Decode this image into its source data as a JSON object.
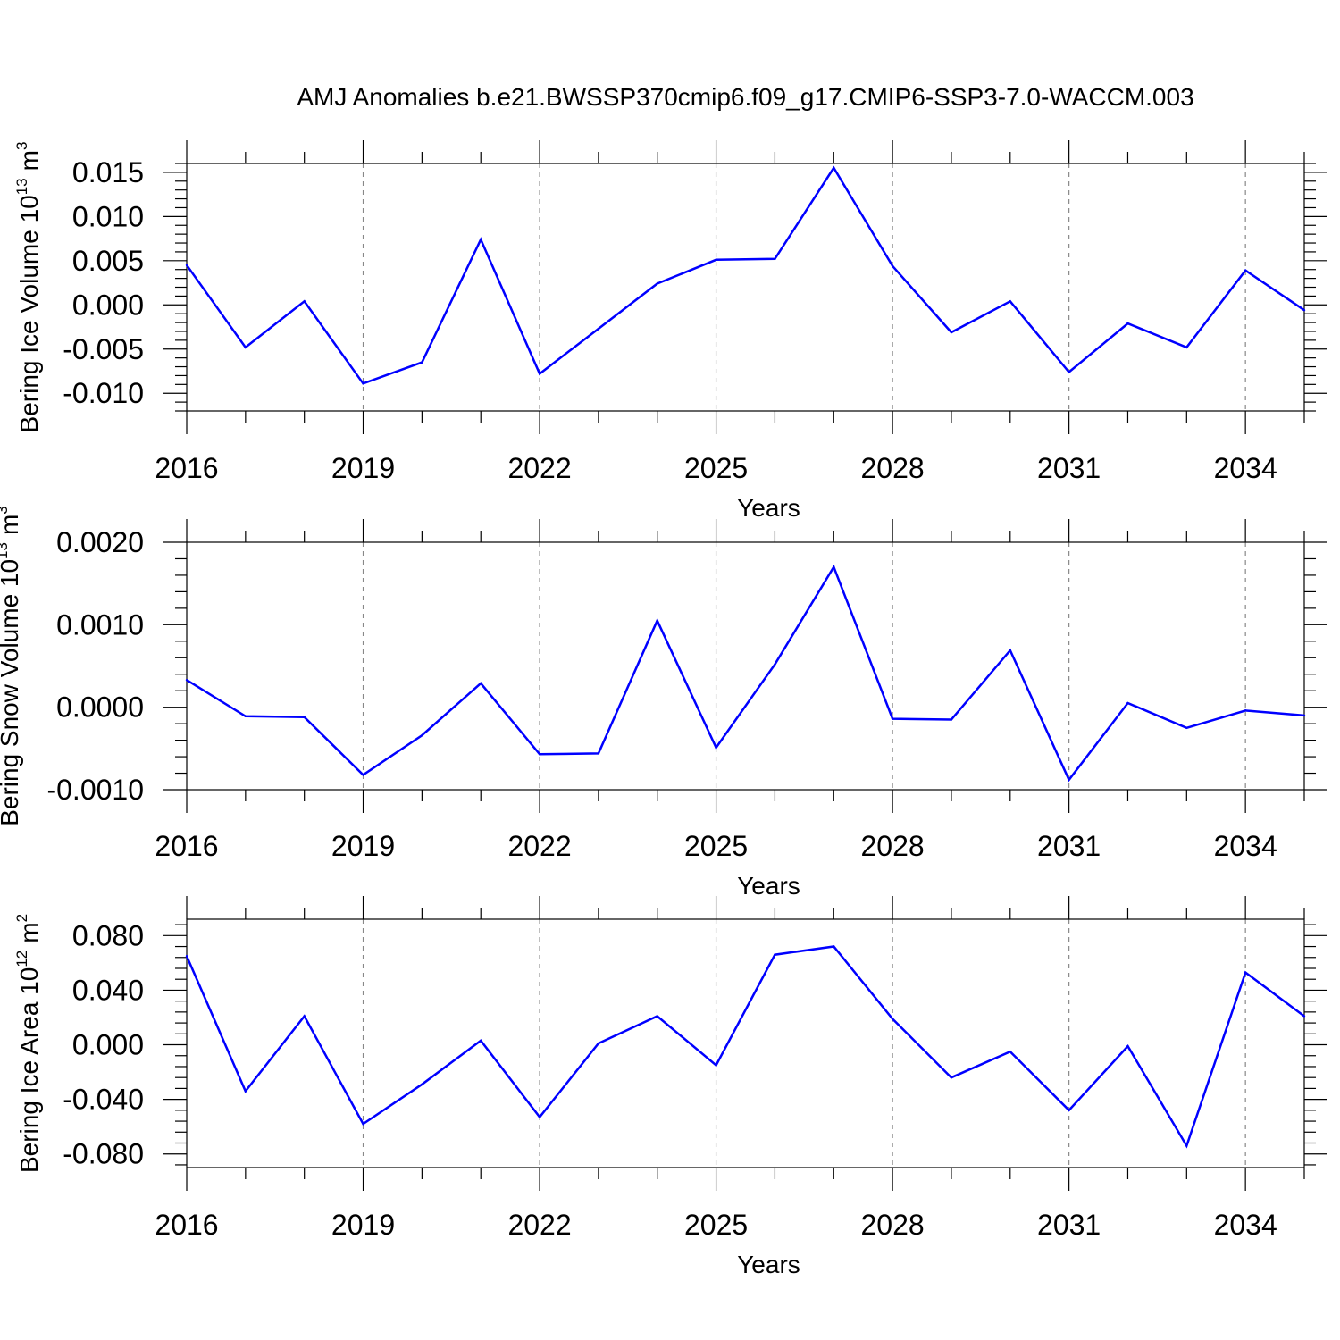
{
  "chart_data": [
    {
      "type": "line",
      "title": "AMJ Anomalies b.e21.BWSSP370cmip6.f09_g17.CMIP6-SSP3-7.0-WACCM.003",
      "xlabel": "Years",
      "ylabel_main": "Bering Ice Volume 10",
      "ylabel_exp": "13",
      "ylabel_unit": "m",
      "ylabel_unit_exp": "3",
      "xlim": [
        2016,
        2035
      ],
      "ylim": [
        -0.012,
        0.016
      ],
      "yticks": [
        -0.01,
        -0.005,
        0.0,
        0.005,
        0.01,
        0.015
      ],
      "ytick_labels": [
        "-0.010",
        "-0.005",
        "0.000",
        "0.005",
        "0.010",
        "0.015"
      ],
      "xticks": [
        2016,
        2019,
        2022,
        2025,
        2028,
        2031,
        2034
      ],
      "xtick_labels": [
        "2016",
        "2019",
        "2022",
        "2025",
        "2028",
        "2031",
        "2034"
      ],
      "x": [
        2016,
        2017,
        2018,
        2019,
        2020,
        2021,
        2022,
        2023,
        2024,
        2025,
        2026,
        2027,
        2028,
        2029,
        2030,
        2031,
        2032,
        2033,
        2034,
        2035
      ],
      "values": [
        0.0045,
        -0.0048,
        0.0004,
        -0.0089,
        -0.0065,
        0.0074,
        -0.0078,
        -0.0027,
        0.0024,
        0.0051,
        0.0052,
        0.0155,
        0.0044,
        -0.0031,
        0.0004,
        -0.0076,
        -0.0021,
        -0.0048,
        0.0039,
        -0.0006
      ],
      "grid": true,
      "color": "#0000ff"
    },
    {
      "type": "line",
      "title": "",
      "xlabel": "Years",
      "ylabel_main": "Bering Snow Volume 10",
      "ylabel_exp": "13",
      "ylabel_unit": "m",
      "ylabel_unit_exp": "3",
      "xlim": [
        2016,
        2035
      ],
      "ylim": [
        -0.001,
        0.002
      ],
      "yticks": [
        -0.001,
        0.0,
        0.001,
        0.002
      ],
      "ytick_labels": [
        "-0.0010",
        "0.0000",
        "0.0010",
        "0.0020"
      ],
      "xticks": [
        2016,
        2019,
        2022,
        2025,
        2028,
        2031,
        2034
      ],
      "xtick_labels": [
        "2016",
        "2019",
        "2022",
        "2025",
        "2028",
        "2031",
        "2034"
      ],
      "x": [
        2016,
        2017,
        2018,
        2019,
        2020,
        2021,
        2022,
        2023,
        2024,
        2025,
        2026,
        2027,
        2028,
        2029,
        2030,
        2031,
        2032,
        2033,
        2034,
        2035
      ],
      "values": [
        0.00033,
        -0.00011,
        -0.00012,
        -0.00082,
        -0.00034,
        0.00029,
        -0.00057,
        -0.00056,
        0.00105,
        -0.00049,
        0.00052,
        0.0017,
        -0.00014,
        -0.00015,
        0.00069,
        -0.00088,
        5e-05,
        -0.00025,
        -4e-05,
        -0.0001
      ],
      "grid": true,
      "color": "#0000ff"
    },
    {
      "type": "line",
      "title": "",
      "xlabel": "Years",
      "ylabel_main": "Bering Ice Area 10",
      "ylabel_exp": "12",
      "ylabel_unit": "m",
      "ylabel_unit_exp": "2",
      "xlim": [
        2016,
        2035
      ],
      "ylim": [
        -0.09,
        0.092
      ],
      "yticks": [
        -0.08,
        -0.04,
        0.0,
        0.04,
        0.08
      ],
      "ytick_labels": [
        "-0.080",
        "-0.040",
        "0.000",
        "0.040",
        "0.080"
      ],
      "xticks": [
        2016,
        2019,
        2022,
        2025,
        2028,
        2031,
        2034
      ],
      "xtick_labels": [
        "2016",
        "2019",
        "2022",
        "2025",
        "2028",
        "2031",
        "2034"
      ],
      "x": [
        2016,
        2017,
        2018,
        2019,
        2020,
        2021,
        2022,
        2023,
        2024,
        2025,
        2026,
        2027,
        2028,
        2029,
        2030,
        2031,
        2032,
        2033,
        2034,
        2035
      ],
      "values": [
        0.065,
        -0.034,
        0.021,
        -0.058,
        -0.029,
        0.003,
        -0.053,
        0.001,
        0.021,
        -0.015,
        0.066,
        0.072,
        0.019,
        -0.024,
        -0.005,
        -0.048,
        -0.001,
        -0.074,
        0.053,
        0.021
      ],
      "grid": true,
      "color": "#0000ff"
    }
  ]
}
